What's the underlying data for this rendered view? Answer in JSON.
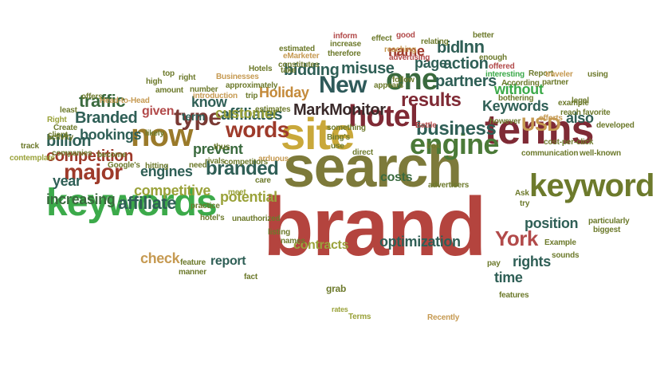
{
  "words": [
    {
      "text": "brand",
      "color": "#b4443e"
    },
    {
      "text": "search",
      "color": "#7d7a3a"
    },
    {
      "text": "site",
      "color": "#c9a83a"
    },
    {
      "text": "terms",
      "color": "#7f2a35"
    },
    {
      "text": "keywords",
      "color": "#3caa4a"
    },
    {
      "text": "keyword",
      "color": "#6d7a2c"
    },
    {
      "text": "engine",
      "color": "#4b7a38"
    },
    {
      "text": "hotel",
      "color": "#7f2a35"
    },
    {
      "text": "now",
      "color": "#9a7a2a"
    },
    {
      "text": "one",
      "color": "#3a6a3e"
    },
    {
      "text": "New",
      "color": "#2f5a5a"
    },
    {
      "text": "type",
      "color": "#7a3a34"
    },
    {
      "text": "words",
      "color": "#9e3a2a"
    },
    {
      "text": "major",
      "color": "#9e3a2a"
    },
    {
      "text": "branded",
      "color": "#2f5f56"
    },
    {
      "text": "business",
      "color": "#2f5f56"
    },
    {
      "text": "results",
      "color": "#7f2a35"
    },
    {
      "text": "USD",
      "color": "#c69a52"
    },
    {
      "text": "York",
      "color": "#b24a4a"
    },
    {
      "text": "traffic",
      "color": "#3a6a3e"
    },
    {
      "text": "competition",
      "color": "#9e3a2a"
    },
    {
      "text": "Branded",
      "color": "#2f5f56"
    },
    {
      "text": "bookings",
      "color": "#2f5f56"
    },
    {
      "text": "billion",
      "color": "#2f5f56"
    },
    {
      "text": "affiliate",
      "color": "#2f5f56"
    },
    {
      "text": "affiliates",
      "color": "#2f5f56"
    },
    {
      "text": "competitive",
      "color": "#9aa23a"
    },
    {
      "text": "potential",
      "color": "#9aa23a"
    },
    {
      "text": "increasing",
      "color": "#3a6a3e"
    },
    {
      "text": "customer",
      "color": "#9aa23a"
    },
    {
      "text": "MarkMonitor",
      "color": "#3a2a2a"
    },
    {
      "text": "Holiday",
      "color": "#c48a3a"
    },
    {
      "text": "misuse",
      "color": "#2f5f56"
    },
    {
      "text": "bidding",
      "color": "#2f5f56"
    },
    {
      "text": "action",
      "color": "#2f5f56"
    },
    {
      "text": "partners",
      "color": "#2f5f56"
    },
    {
      "text": "Keywords",
      "color": "#2f5f56"
    },
    {
      "text": "without",
      "color": "#3caa4a"
    },
    {
      "text": "position",
      "color": "#2f5f56"
    },
    {
      "text": "rights",
      "color": "#2f5f56"
    },
    {
      "text": "optimization",
      "color": "#2f5f56"
    },
    {
      "text": "contracts",
      "color": "#9aa23a"
    },
    {
      "text": "report",
      "color": "#2f5f56"
    },
    {
      "text": "check",
      "color": "#c69a52"
    },
    {
      "text": "costs",
      "color": "#3a6a3e"
    },
    {
      "text": "engines",
      "color": "#2f5f56"
    },
    {
      "text": "prevent",
      "color": "#3a6a3e"
    },
    {
      "text": "know",
      "color": "#2f5f56"
    },
    {
      "text": "given",
      "color": "#b24a4a"
    },
    {
      "text": "term",
      "color": "#2f5f56"
    },
    {
      "text": "page",
      "color": "#2f5f56"
    },
    {
      "text": "name",
      "color": "#9e3a2a"
    },
    {
      "text": "Inn",
      "color": "#2f5f56"
    },
    {
      "text": "bid",
      "color": "#2f5f56"
    },
    {
      "text": "year",
      "color": "#2f5f56"
    },
    {
      "text": "time",
      "color": "#2f5f56"
    },
    {
      "text": "also",
      "color": "#2f5f56"
    },
    {
      "text": "rates",
      "color": "#9aa23a"
    },
    {
      "text": "grab",
      "color": "#6d7a2c"
    },
    {
      "text": "Recently",
      "color": "#c69a52"
    },
    {
      "text": "Terms",
      "color": "#9aa23a"
    },
    {
      "text": "features",
      "color": "#6d7a2c"
    },
    {
      "text": "sounds",
      "color": "#6d7a2c"
    },
    {
      "text": "Example",
      "color": "#6d7a2c"
    },
    {
      "text": "biggest",
      "color": "#6d7a2c"
    },
    {
      "text": "particularly",
      "color": "#6d7a2c"
    },
    {
      "text": "pay",
      "color": "#6d7a2c"
    },
    {
      "text": "fact",
      "color": "#6d7a2c"
    },
    {
      "text": "manner",
      "color": "#6d7a2c"
    },
    {
      "text": "feature",
      "color": "#6d7a2c"
    },
    {
      "text": "names",
      "color": "#6d7a2c"
    },
    {
      "text": "listing",
      "color": "#6d7a2c"
    },
    {
      "text": "unauthorized",
      "color": "#6d7a2c"
    },
    {
      "text": "hotel's",
      "color": "#6d7a2c"
    },
    {
      "text": "practice",
      "color": "#6d7a2c"
    },
    {
      "text": "meet",
      "color": "#9aa23a"
    },
    {
      "text": "Google's",
      "color": "#6d7a2c"
    },
    {
      "text": "companies",
      "color": "#6d7a2c"
    },
    {
      "text": "activity",
      "color": "#6d7a2c"
    },
    {
      "text": "contemplate",
      "color": "#9aa23a"
    },
    {
      "text": "track",
      "color": "#6d7a2c"
    },
    {
      "text": "become",
      "color": "#6d7a2c"
    },
    {
      "text": "client",
      "color": "#6d7a2c"
    },
    {
      "text": "Right",
      "color": "#9aa23a"
    },
    {
      "text": "Create",
      "color": "#6d7a2c"
    },
    {
      "text": "least",
      "color": "#6d7a2c"
    },
    {
      "text": "offers",
      "color": "#6d7a2c"
    },
    {
      "text": "Head-to-Head",
      "color": "#c69a52"
    },
    {
      "text": "high",
      "color": "#6d7a2c"
    },
    {
      "text": "top",
      "color": "#6d7a2c"
    },
    {
      "text": "right",
      "color": "#6d7a2c"
    },
    {
      "text": "number",
      "color": "#6d7a2c"
    },
    {
      "text": "amount",
      "color": "#6d7a2c"
    },
    {
      "text": "introduction",
      "color": "#c69a52"
    },
    {
      "text": "Businesses",
      "color": "#c69a52"
    },
    {
      "text": "approximately",
      "color": "#6d7a2c"
    },
    {
      "text": "trip",
      "color": "#6d7a2c"
    },
    {
      "text": "Hotels",
      "color": "#6d7a2c"
    },
    {
      "text": "eMarketer",
      "color": "#c69a52"
    },
    {
      "text": "estimated",
      "color": "#6d7a2c"
    },
    {
      "text": "constitutes",
      "color": "#6d7a2c"
    },
    {
      "text": "therefore",
      "color": "#6d7a2c"
    },
    {
      "text": "inform",
      "color": "#b24a4a"
    },
    {
      "text": "increase",
      "color": "#6d7a2c"
    },
    {
      "text": "effect",
      "color": "#6d7a2c"
    },
    {
      "text": "good",
      "color": "#b24a4a"
    },
    {
      "text": "reaching",
      "color": "#c69a52"
    },
    {
      "text": "advertising",
      "color": "#b24a4a"
    },
    {
      "text": "relating",
      "color": "#6d7a2c"
    },
    {
      "text": "better",
      "color": "#6d7a2c"
    },
    {
      "text": "enough",
      "color": "#6d7a2c"
    },
    {
      "text": "offered",
      "color": "#b24a4a"
    },
    {
      "text": "interesting",
      "color": "#3caa4a"
    },
    {
      "text": "Report",
      "color": "#6d7a2c"
    },
    {
      "text": "According",
      "color": "#6d7a2c"
    },
    {
      "text": "partner",
      "color": "#6d7a2c"
    },
    {
      "text": "traveler",
      "color": "#c69a52"
    },
    {
      "text": "using",
      "color": "#6d7a2c"
    },
    {
      "text": "legal",
      "color": "#6d7a2c"
    },
    {
      "text": "example",
      "color": "#6d7a2c"
    },
    {
      "text": "reach",
      "color": "#6d7a2c"
    },
    {
      "text": "favorite",
      "color": "#6d7a2c"
    },
    {
      "text": "developed",
      "color": "#6d7a2c"
    },
    {
      "text": "efforts",
      "color": "#c69a52"
    },
    {
      "text": "bothering",
      "color": "#6d7a2c"
    },
    {
      "text": "cost-per-click",
      "color": "#6d7a2c"
    },
    {
      "text": "well-known",
      "color": "#6d7a2c"
    },
    {
      "text": "communication",
      "color": "#6d7a2c"
    },
    {
      "text": "however",
      "color": "#6d7a2c"
    },
    {
      "text": "Battle",
      "color": "#b24a4a"
    },
    {
      "text": "box",
      "color": "#6d7a2c"
    },
    {
      "text": "appears",
      "color": "#6d7a2c"
    },
    {
      "text": "follow",
      "color": "#6d7a2c"
    },
    {
      "text": "take",
      "color": "#6d7a2c"
    },
    {
      "text": "something",
      "color": "#6d7a2c"
    },
    {
      "text": "Bing's",
      "color": "#6d7a2c"
    },
    {
      "text": "use",
      "color": "#6d7a2c"
    },
    {
      "text": "direct",
      "color": "#6d7a2c"
    },
    {
      "text": "advertisers",
      "color": "#6d7a2c"
    },
    {
      "text": "Ask",
      "color": "#6d7a2c"
    },
    {
      "text": "try",
      "color": "#6d7a2c"
    },
    {
      "text": "estimates",
      "color": "#6d7a2c"
    },
    {
      "text": "care",
      "color": "#6d7a2c"
    },
    {
      "text": "thus",
      "color": "#6d7a2c"
    },
    {
      "text": "arduous",
      "color": "#c69a52"
    },
    {
      "text": "competitors",
      "color": "#6d7a2c"
    },
    {
      "text": "need",
      "color": "#6d7a2c"
    },
    {
      "text": "hitting",
      "color": "#6d7a2c"
    },
    {
      "text": "likely",
      "color": "#6d7a2c"
    },
    {
      "text": "rivals",
      "color": "#6d7a2c"
    }
  ]
}
